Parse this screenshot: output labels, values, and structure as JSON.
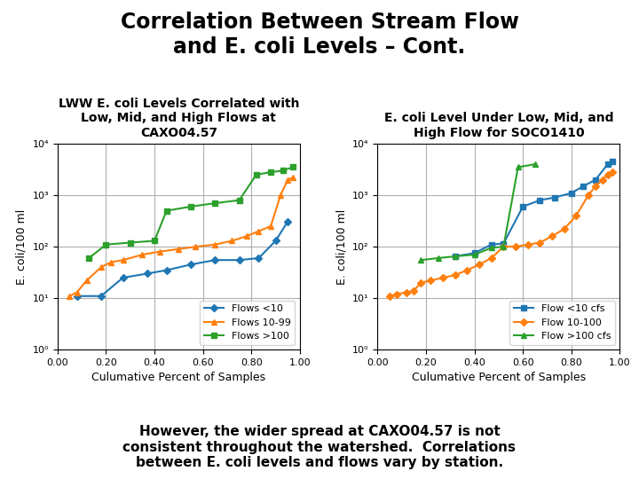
{
  "title": "Correlation Between Stream Flow\nand E. coli Levels – Cont.",
  "annotations": [
    "However, the wider spread at CAXO04.57 is not\nconsistent throughout the watershed.  Correlations\nbetween E. coli levels and flows vary by station."
  ],
  "chart_data": [
    {
      "type": "line",
      "title": "LWW E. coli Levels Correlated with\nLow, Mid, and High Flows at\nCAXO04.57",
      "x_label": "Culumative Percent of Samples",
      "y_label": "E. coli/100 ml",
      "log": "y",
      "xlim": [
        0,
        1.0
      ],
      "xticks": [
        {
          "value": 0.0,
          "label": "0.00"
        },
        {
          "value": 0.2,
          "label": "0.20"
        },
        {
          "value": 0.4,
          "label": "0.40"
        },
        {
          "value": 0.6,
          "label": "0.60"
        },
        {
          "value": 0.8,
          "label": "0.80"
        },
        {
          "value": 1.0,
          "label": "1.00"
        }
      ],
      "ylim": [
        1,
        10000
      ],
      "yticks": [
        {
          "value": 1,
          "label": "10⁰"
        },
        {
          "value": 10,
          "label": "10¹"
        },
        {
          "value": 100,
          "label": "10²"
        },
        {
          "value": 1000,
          "label": "10³"
        },
        {
          "value": 10000,
          "label": "10⁴"
        }
      ],
      "grid": true,
      "legend": "lower right",
      "series": [
        {
          "name": "Flows <10",
          "marker": "diamond",
          "x": [
            0.08,
            0.18,
            0.27,
            0.37,
            0.45,
            0.55,
            0.65,
            0.75,
            0.83,
            0.9,
            0.95
          ],
          "values": [
            11,
            11,
            25,
            30,
            35,
            45,
            55,
            55,
            60,
            130,
            310
          ]
        },
        {
          "name": "Flows 10-99",
          "marker": "triangle",
          "x": [
            0.05,
            0.08,
            0.12,
            0.18,
            0.22,
            0.27,
            0.35,
            0.42,
            0.5,
            0.57,
            0.65,
            0.72,
            0.78,
            0.83,
            0.88,
            0.92,
            0.95,
            0.97
          ],
          "values": [
            11,
            13,
            22,
            40,
            50,
            55,
            70,
            80,
            90,
            100,
            110,
            130,
            160,
            200,
            250,
            1000,
            2000,
            2200
          ]
        },
        {
          "name": "Flows >100",
          "marker": "square",
          "x": [
            0.13,
            0.2,
            0.3,
            0.4,
            0.45,
            0.55,
            0.65,
            0.75,
            0.82,
            0.88,
            0.93,
            0.97
          ],
          "values": [
            60,
            110,
            120,
            130,
            500,
            600,
            700,
            800,
            2500,
            2800,
            3000,
            3500
          ]
        }
      ]
    },
    {
      "type": "line",
      "title": "E. coli Level Under Low, Mid, and\nHigh Flow for SOCO1410",
      "x_label": "Culumative Percent of Samples",
      "y_label": "E. coli/100 ml",
      "log": "y",
      "xlim": [
        0,
        1.0
      ],
      "xticks": [
        {
          "value": 0.0,
          "label": "0.00"
        },
        {
          "value": 0.2,
          "label": "0.20"
        },
        {
          "value": 0.4,
          "label": "0.40"
        },
        {
          "value": 0.6,
          "label": "0.60"
        },
        {
          "value": 0.8,
          "label": "0.80"
        },
        {
          "value": 1.0,
          "label": "1.00"
        }
      ],
      "ylim": [
        1,
        10000
      ],
      "yticks": [
        {
          "value": 1,
          "label": "10⁰"
        },
        {
          "value": 10,
          "label": "10¹"
        },
        {
          "value": 100,
          "label": "10²"
        },
        {
          "value": 1000,
          "label": "10³"
        },
        {
          "value": 10000,
          "label": "10⁴"
        }
      ],
      "grid": true,
      "legend": "lower right",
      "series": [
        {
          "name": "Flow <10 cfs",
          "marker": "square",
          "x": [
            0.32,
            0.4,
            0.47,
            0.52,
            0.6,
            0.67,
            0.73,
            0.8,
            0.85,
            0.9,
            0.95,
            0.97
          ],
          "values": [
            65,
            75,
            110,
            115,
            600,
            800,
            900,
            1100,
            1500,
            2000,
            4000,
            4500
          ]
        },
        {
          "name": "Flow 10-100",
          "marker": "diamond",
          "x": [
            0.05,
            0.08,
            0.12,
            0.15,
            0.18,
            0.22,
            0.27,
            0.32,
            0.37,
            0.42,
            0.47,
            0.52,
            0.57,
            0.62,
            0.67,
            0.72,
            0.77,
            0.82,
            0.87,
            0.9,
            0.93,
            0.95,
            0.97
          ],
          "values": [
            11,
            12,
            13,
            14,
            20,
            22,
            25,
            28,
            35,
            45,
            60,
            100,
            100,
            110,
            120,
            160,
            220,
            400,
            1000,
            1500,
            2000,
            2500,
            2800
          ]
        },
        {
          "name": "Flow >100 cfs",
          "marker": "triangle",
          "x": [
            0.18,
            0.25,
            0.32,
            0.4,
            0.47,
            0.52,
            0.58,
            0.65
          ],
          "values": [
            55,
            60,
            65,
            70,
            95,
            100,
            3500,
            4000
          ]
        }
      ]
    }
  ]
}
